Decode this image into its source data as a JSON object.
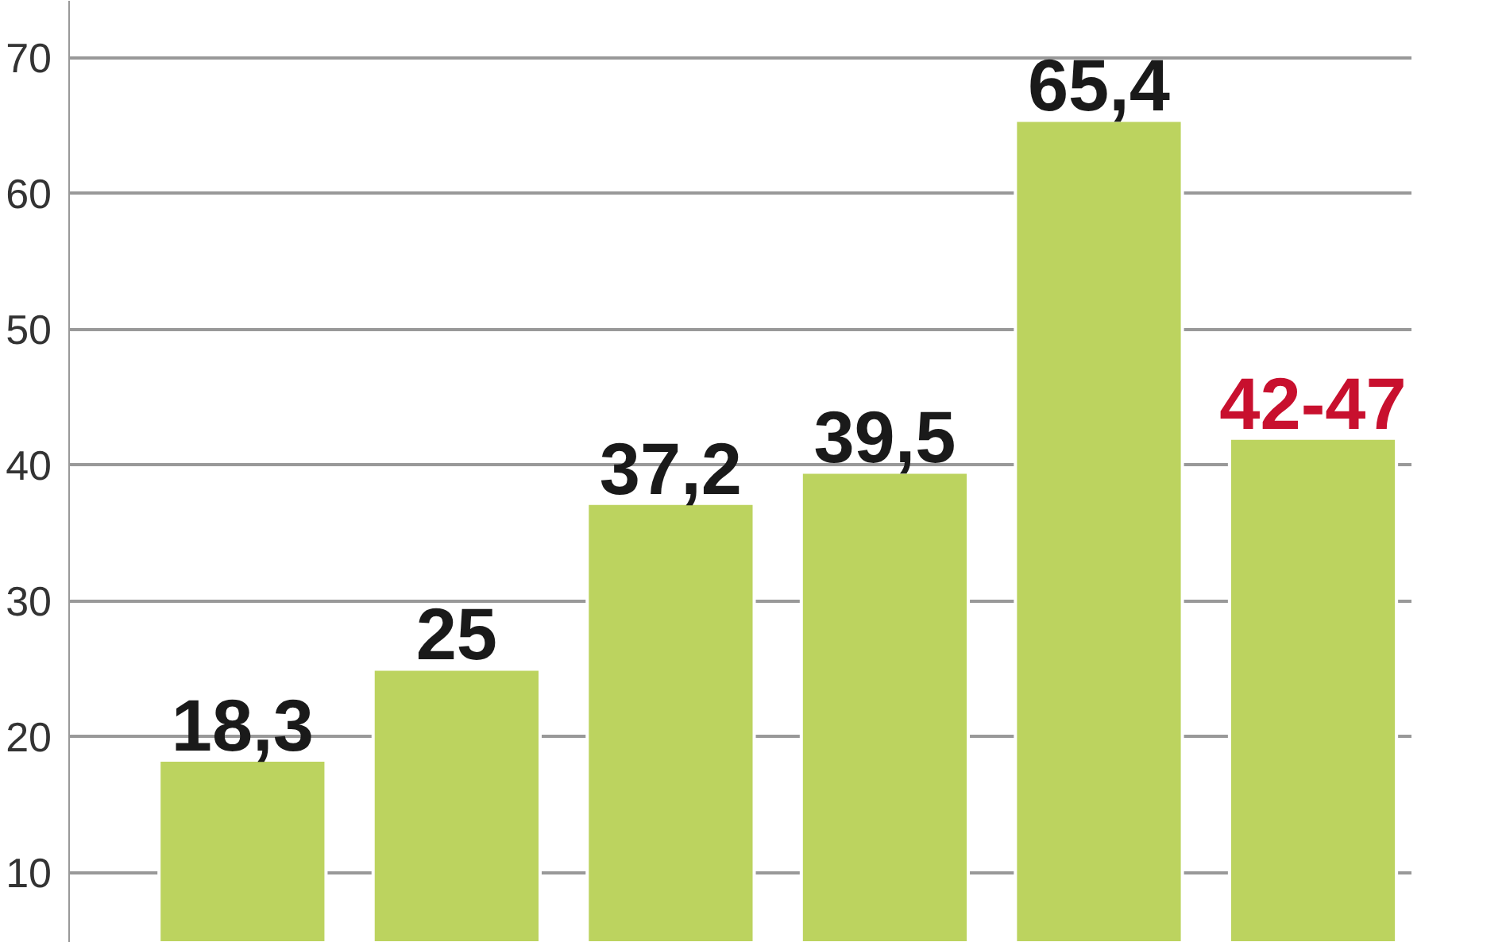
{
  "chart_data": {
    "type": "bar",
    "categories": [
      null,
      null,
      null,
      null,
      null,
      null
    ],
    "values": [
      18.3,
      25,
      37.2,
      39.5,
      65.4,
      42
    ],
    "value_labels": [
      "18,3",
      "25",
      "37,2",
      "39,5",
      "65,4",
      "42-47"
    ],
    "color": "#bcd35f",
    "ylim": [
      4.85,
      74.2
    ],
    "yticks": [
      10,
      20,
      30,
      40,
      50,
      60,
      70
    ],
    "grid": "y"
  }
}
